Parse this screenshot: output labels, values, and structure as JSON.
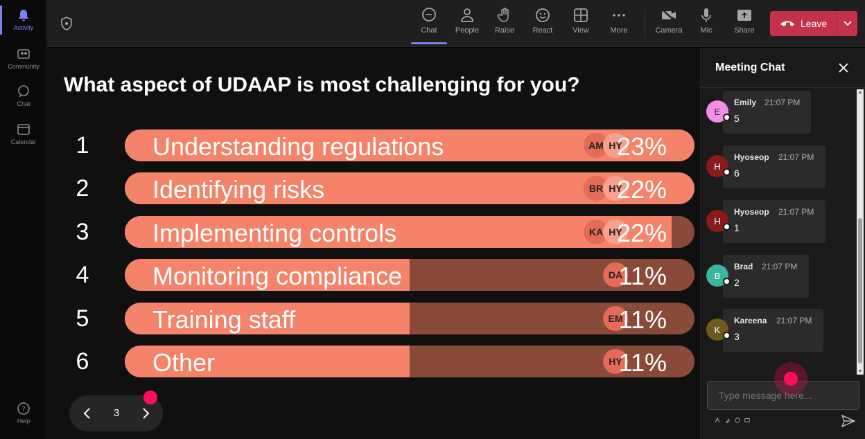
{
  "rail": {
    "items": [
      {
        "label": "Activity",
        "icon": "bell-icon",
        "active": true
      },
      {
        "label": "Community",
        "icon": "community-icon"
      },
      {
        "label": "Chat",
        "icon": "chat-icon"
      },
      {
        "label": "Calendar",
        "icon": "calendar-icon"
      }
    ],
    "help": {
      "label": "Help",
      "icon": "help-icon"
    }
  },
  "toolbar": {
    "tools": [
      {
        "label": "Chat",
        "icon": "chat-icon",
        "active": true
      },
      {
        "label": "People",
        "icon": "people-icon"
      },
      {
        "label": "Raise",
        "icon": "hand-icon"
      },
      {
        "label": "React",
        "icon": "emoji-icon"
      },
      {
        "label": "View",
        "icon": "grid-icon"
      },
      {
        "label": "More",
        "icon": "more-icon"
      },
      {
        "label": "Camera",
        "icon": "camera-off-icon"
      },
      {
        "label": "Mic",
        "icon": "mic-icon"
      },
      {
        "label": "Share",
        "icon": "share-icon"
      }
    ],
    "leave_label": "Leave",
    "leave_color": "#c4314b"
  },
  "poll": {
    "question": "What aspect of UDAAP is most challenging for you?",
    "bar_color": "#f4836a",
    "track_color": "#8a4a3a",
    "options": [
      {
        "num": "1",
        "label": "Understanding regulations",
        "pct": "23%",
        "fill": 1.0,
        "avatars": [
          "AM",
          "HY"
        ]
      },
      {
        "num": "2",
        "label": "Identifying risks",
        "pct": "22%",
        "fill": 1.0,
        "avatars": [
          "BR",
          "HY"
        ]
      },
      {
        "num": "3",
        "label": "Implementing controls",
        "pct": "22%",
        "fill": 0.96,
        "avatars": [
          "KA",
          "HY"
        ]
      },
      {
        "num": "4",
        "label": "Monitoring compliance",
        "pct": "11%",
        "fill": 0.5,
        "avatars": [
          "DA"
        ]
      },
      {
        "num": "5",
        "label": "Training staff",
        "pct": "11%",
        "fill": 0.5,
        "avatars": [
          "EM"
        ]
      },
      {
        "num": "6",
        "label": "Other",
        "pct": "11%",
        "fill": 0.5,
        "avatars": [
          "HY"
        ]
      }
    ]
  },
  "pager": {
    "page": "3"
  },
  "chat": {
    "title": "Meeting Chat",
    "messages": [
      {
        "initial": "E",
        "name": "Emily",
        "time": "21:07 PM",
        "text": "5",
        "color": "#f08ee8"
      },
      {
        "initial": "H",
        "name": "Hyoseop",
        "time": "21:07 PM",
        "text": "6",
        "color": "#8b1a1a"
      },
      {
        "initial": "H",
        "name": "Hyoseop",
        "time": "21:07 PM",
        "text": "1",
        "color": "#8b1a1a"
      },
      {
        "initial": "B",
        "name": "Brad",
        "time": "21:07 PM",
        "text": "2",
        "color": "#3bb59e"
      },
      {
        "initial": "K",
        "name": "Kareena",
        "time": "21:07 PM",
        "text": "3",
        "color": "#6b5a1a"
      }
    ],
    "placeholder": "Type message here..."
  }
}
